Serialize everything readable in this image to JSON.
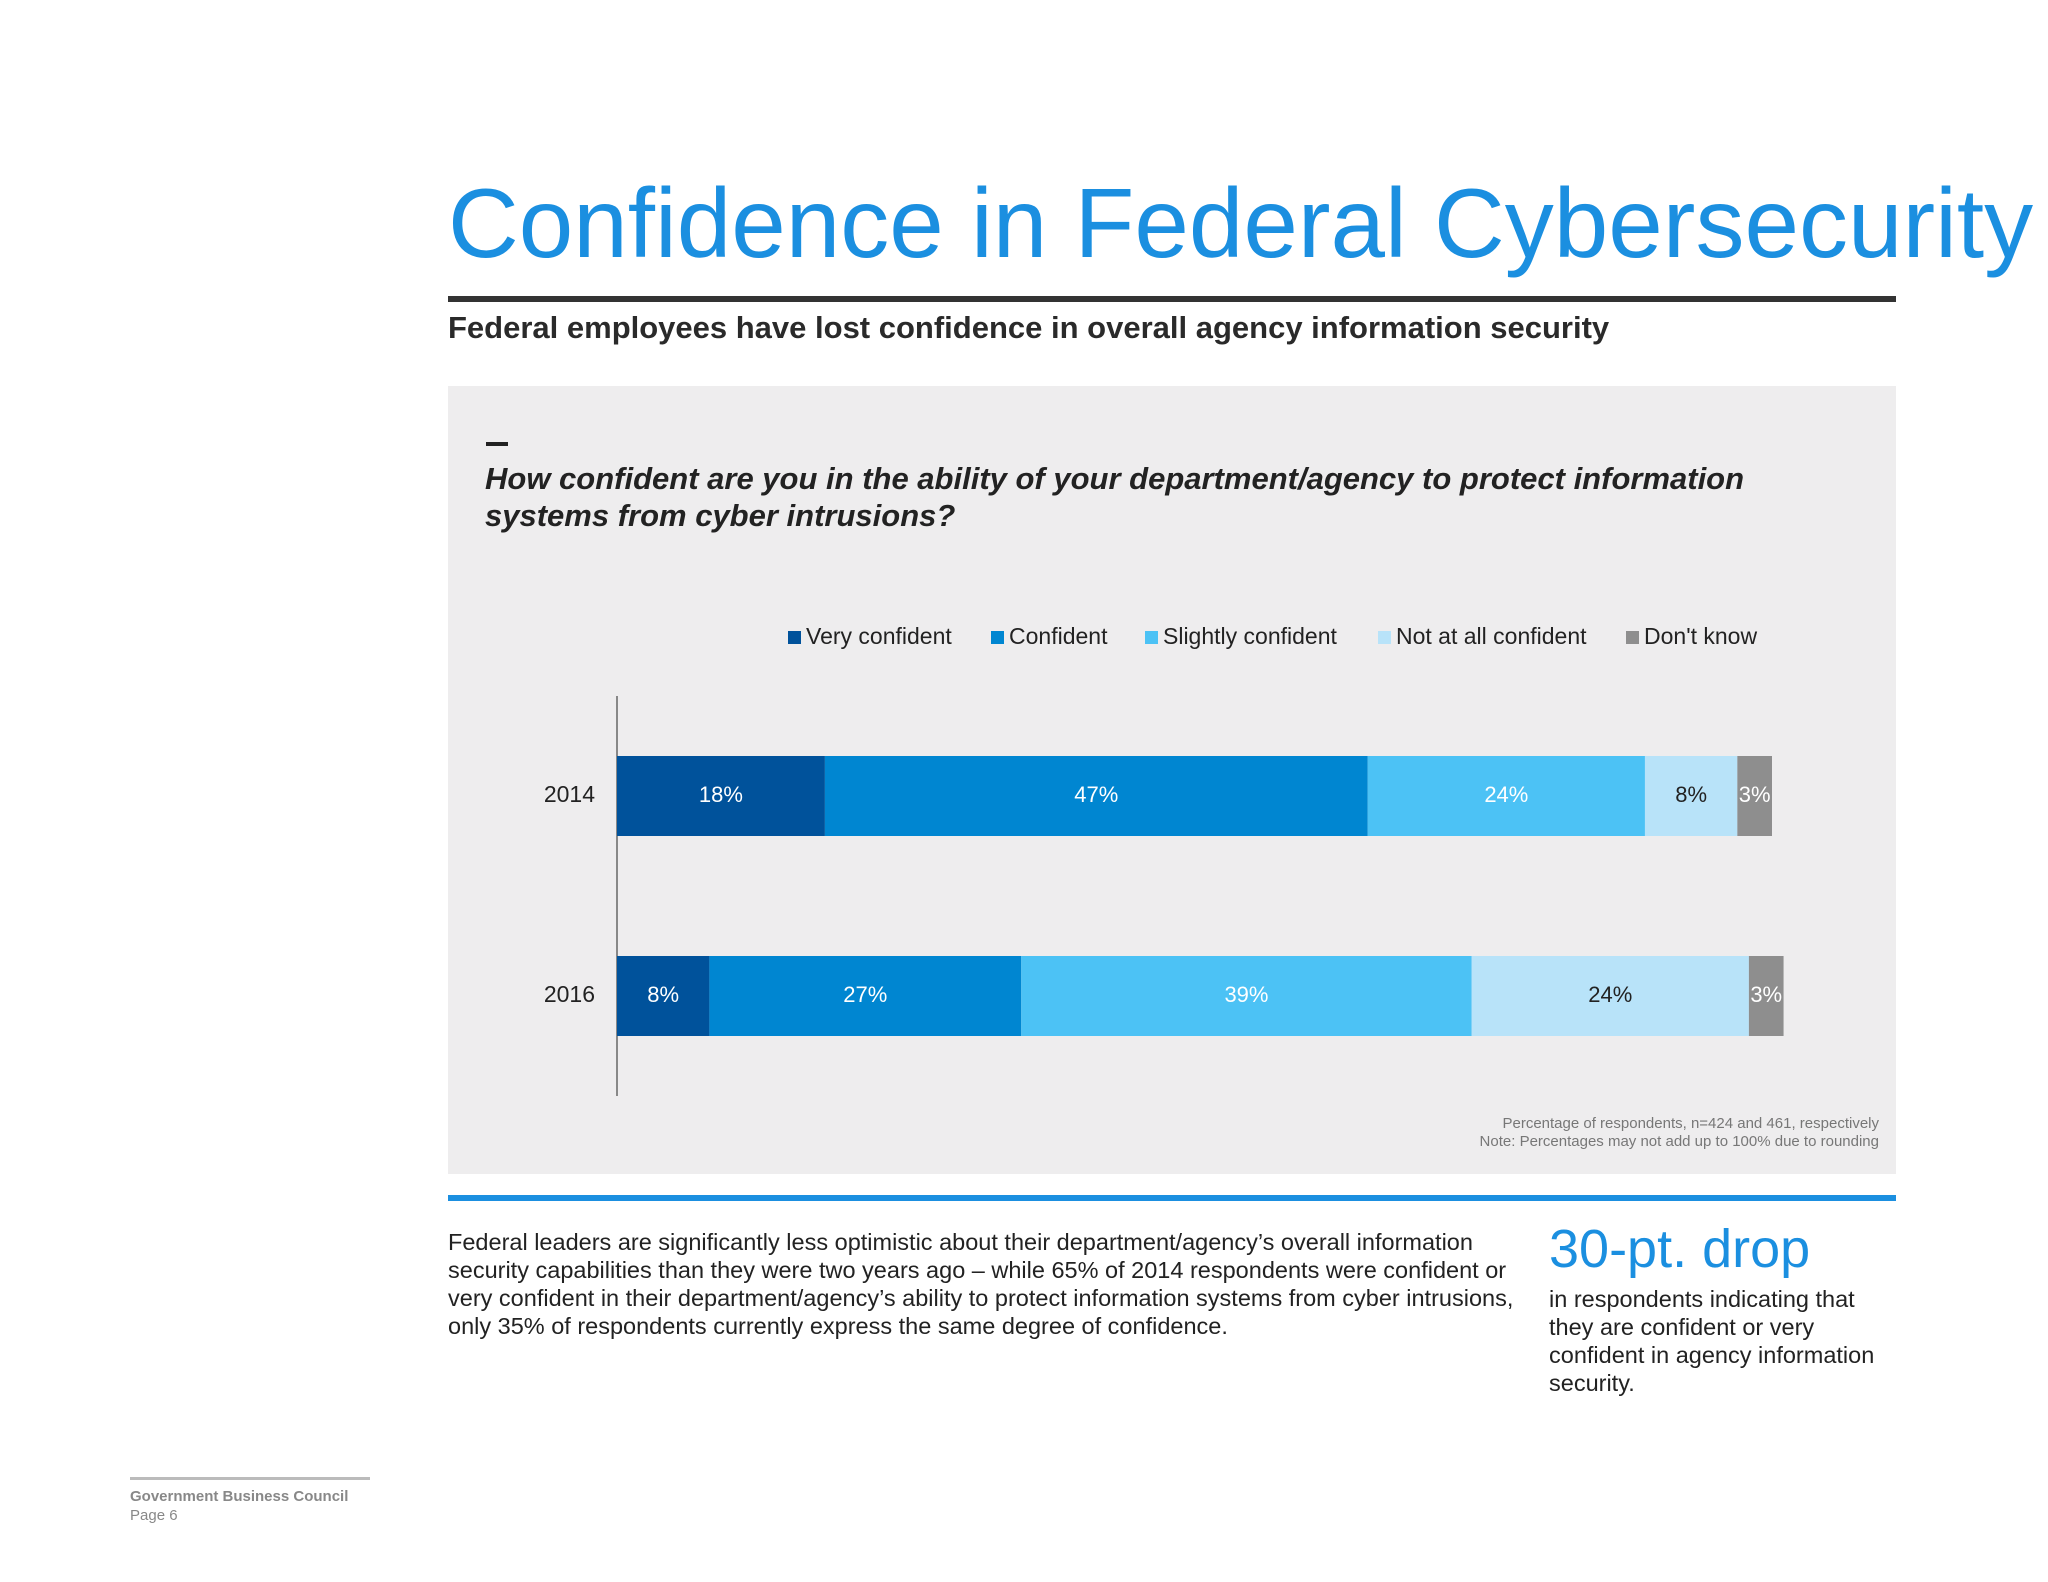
{
  "page": {
    "title": "Confidence in Federal Cybersecurity",
    "subtitle": "Federal employees have lost confidence in overall agency information security",
    "question": "How confident are you in the ability of your department/agency to protect information systems from cyber intrusions?",
    "notes": [
      "Percentage of respondents, n=424 and 461, respectively",
      "Note: Percentages may not add up to 100% due to rounding"
    ],
    "body_text": "Federal leaders are significantly less optimistic about their department/agency’s overall information security capabilities than they were two years ago – while 65% of 2014 respondents were confident or very confident in their department/agency’s ability to protect information systems from cyber intrusions, only 35% of respondents currently express the same degree of confidence.",
    "stat_value": "30-pt. drop",
    "stat_text": "in respondents indicating that they are confident or very confident in agency information security.",
    "footer_org": "Government Business Council",
    "footer_page": "Page 6",
    "colors": {
      "accent": "#1b8fe0",
      "panel": "#eeedee"
    }
  },
  "chart_data": {
    "type": "bar",
    "orientation": "horizontal",
    "stacked": true,
    "categories": [
      "2014",
      "2016"
    ],
    "series": [
      {
        "name": "Very confident",
        "values": [
          18,
          8
        ],
        "color": "#00529b",
        "label_color": "#ffffff"
      },
      {
        "name": "Confident",
        "values": [
          47,
          27
        ],
        "color": "#0086d1",
        "label_color": "#ffffff"
      },
      {
        "name": "Slightly confident",
        "values": [
          24,
          39
        ],
        "color": "#4cc2f5",
        "label_color": "#ffffff"
      },
      {
        "name": "Not at all confident",
        "values": [
          8,
          24
        ],
        "color": "#b8e3f9",
        "label_color": "#222222"
      },
      {
        "name": "Don't know",
        "values": [
          3,
          3
        ],
        "color": "#8e8e8e",
        "label_color": "#ffffff"
      }
    ],
    "value_suffix": "%",
    "xlim": [
      0,
      100
    ],
    "legend": "top",
    "grid": false
  }
}
